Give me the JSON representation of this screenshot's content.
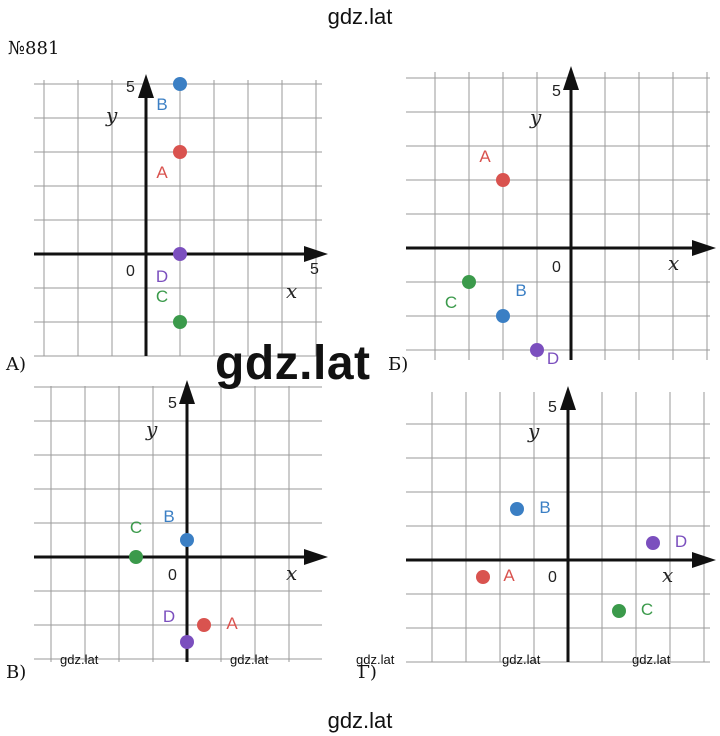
{
  "header": {
    "watermark_top": "gdz.lat",
    "problem_number": "№881"
  },
  "watermark_center": "gdz.lat",
  "footer": {
    "watermark_bottom": "gdz.lat"
  },
  "colors": {
    "A": "#d9534f",
    "B": "#3b7fc4",
    "C": "#3b9a4b",
    "D": "#7b4fbe"
  },
  "panels": [
    {
      "label": "A)",
      "axis_x": "x",
      "axis_y": "y",
      "origin": "0",
      "x_tick": "5",
      "y_tick": "5",
      "points": [
        {
          "name": "A",
          "x": 1,
          "y": 3
        },
        {
          "name": "B",
          "x": 1,
          "y": 5
        },
        {
          "name": "C",
          "x": 1,
          "y": -2
        },
        {
          "name": "D",
          "x": 1,
          "y": 0
        }
      ],
      "watermarks": []
    },
    {
      "label": "Б)",
      "axis_x": "x",
      "axis_y": "y",
      "origin": "0",
      "x_tick": "",
      "y_tick": "5",
      "points": [
        {
          "name": "A",
          "x": -2,
          "y": 2
        },
        {
          "name": "B",
          "x": -2,
          "y": -2
        },
        {
          "name": "C",
          "x": -3,
          "y": -1
        },
        {
          "name": "D",
          "x": -1,
          "y": -3
        }
      ],
      "watermarks": []
    },
    {
      "label": "В)",
      "axis_x": "x",
      "axis_y": "y",
      "origin": "0",
      "x_tick": "",
      "y_tick": "5",
      "points": [
        {
          "name": "A",
          "x": 0.5,
          "y": -2
        },
        {
          "name": "B",
          "x": 0,
          "y": 0.5
        },
        {
          "name": "C",
          "x": -1.5,
          "y": 0
        },
        {
          "name": "D",
          "x": 0,
          "y": -2.5
        }
      ],
      "watermarks": [
        "gdz.lat",
        "gdz.lat"
      ]
    },
    {
      "label": "Г)",
      "axis_x": "x",
      "axis_y": "y",
      "origin": "0",
      "x_tick": "",
      "y_tick": "5",
      "points": [
        {
          "name": "A",
          "x": -2.5,
          "y": -0.5
        },
        {
          "name": "B",
          "x": -1.5,
          "y": 1.5
        },
        {
          "name": "C",
          "x": 1.5,
          "y": -1.5
        },
        {
          "name": "D",
          "x": 2.5,
          "y": 0.5
        }
      ],
      "watermarks": [
        "gdz.lat",
        "gdz.lat",
        "gdz.lat"
      ]
    }
  ]
}
